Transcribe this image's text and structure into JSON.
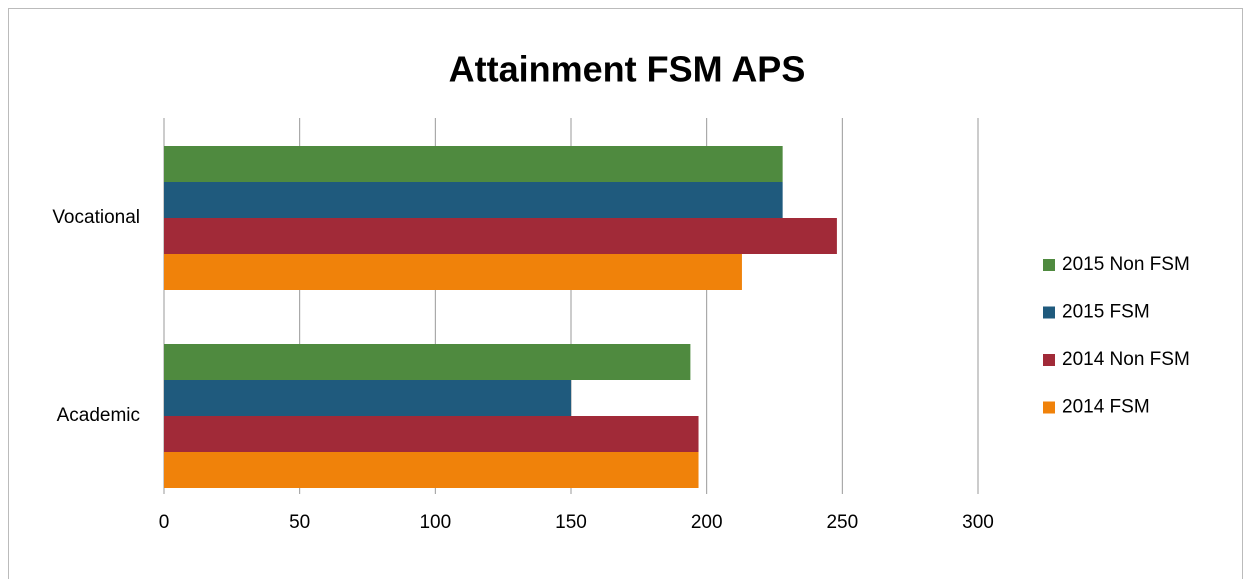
{
  "chart_data": {
    "type": "bar",
    "orientation": "horizontal",
    "title": "Attainment FSM APS",
    "categories": [
      "Vocational",
      "Academic"
    ],
    "series": [
      {
        "name": "2015 Non FSM",
        "color": "#4f8a3f",
        "values": [
          228,
          194
        ]
      },
      {
        "name": "2015 FSM",
        "color": "#1f5a7d",
        "values": [
          228,
          150
        ]
      },
      {
        "name": "2014 Non FSM",
        "color": "#a12a38",
        "values": [
          248,
          197
        ]
      },
      {
        "name": "2014 FSM",
        "color": "#f0820a",
        "values": [
          213,
          197
        ]
      }
    ],
    "xlim": [
      0,
      300
    ],
    "xticks": [
      0,
      50,
      100,
      150,
      200,
      250,
      300
    ],
    "grid": true,
    "legend": "right"
  }
}
